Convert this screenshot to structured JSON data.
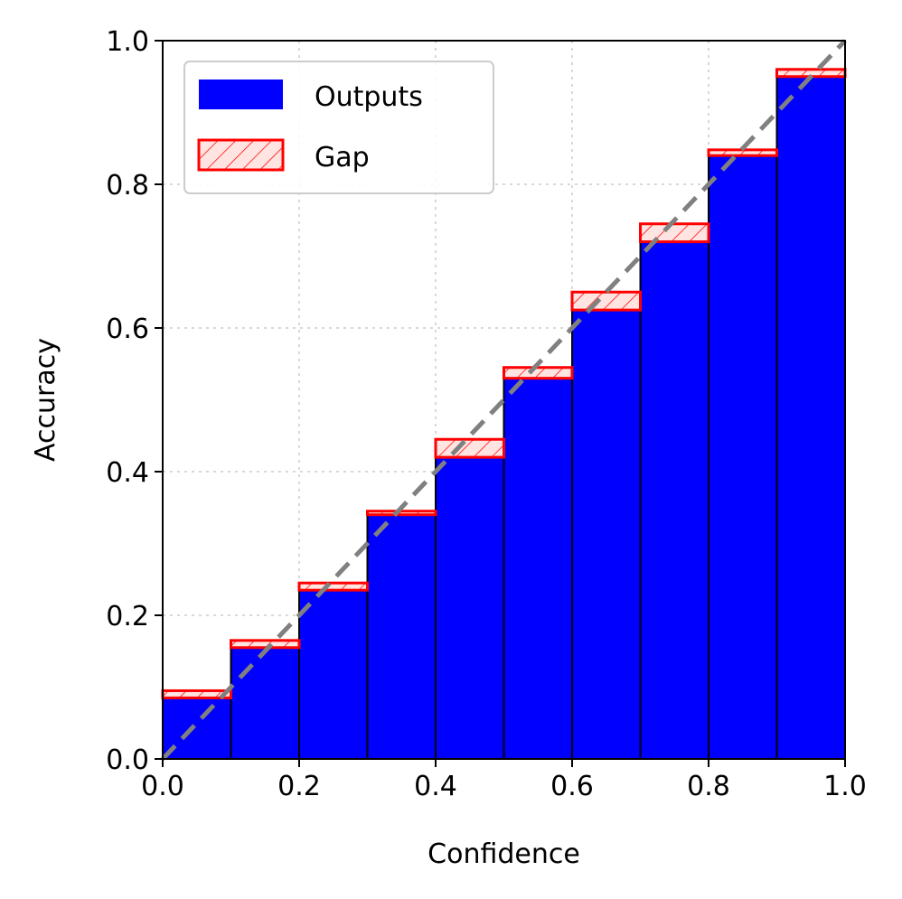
{
  "chart_data": {
    "type": "bar",
    "xlabel": "Confidence",
    "ylabel": "Accuracy",
    "xlim": [
      0.0,
      1.0
    ],
    "ylim": [
      0.0,
      1.0
    ],
    "xticks": [
      "0.0",
      "0.2",
      "0.4",
      "0.6",
      "0.8",
      "1.0"
    ],
    "yticks": [
      "0.0",
      "0.2",
      "0.4",
      "0.6",
      "0.8",
      "1.0"
    ],
    "grid": true,
    "legend_position": "top-left",
    "bin_edges": [
      0.0,
      0.1,
      0.2,
      0.3,
      0.4,
      0.5,
      0.6,
      0.7,
      0.8,
      0.9,
      1.0
    ],
    "series": [
      {
        "name": "Outputs",
        "color": "#0000ff",
        "values": [
          0.085,
          0.155,
          0.235,
          0.34,
          0.42,
          0.53,
          0.625,
          0.72,
          0.84,
          0.95
        ]
      },
      {
        "name": "Gap",
        "color": "#ff0000",
        "fill": "#ffe4e1",
        "values": [
          0.095,
          0.165,
          0.245,
          0.345,
          0.445,
          0.545,
          0.65,
          0.745,
          0.848,
          0.96
        ]
      }
    ],
    "reference_line": {
      "style": "dashed",
      "color": "#808080",
      "from": [
        0.0,
        0.0
      ],
      "to": [
        1.0,
        1.0
      ]
    }
  }
}
